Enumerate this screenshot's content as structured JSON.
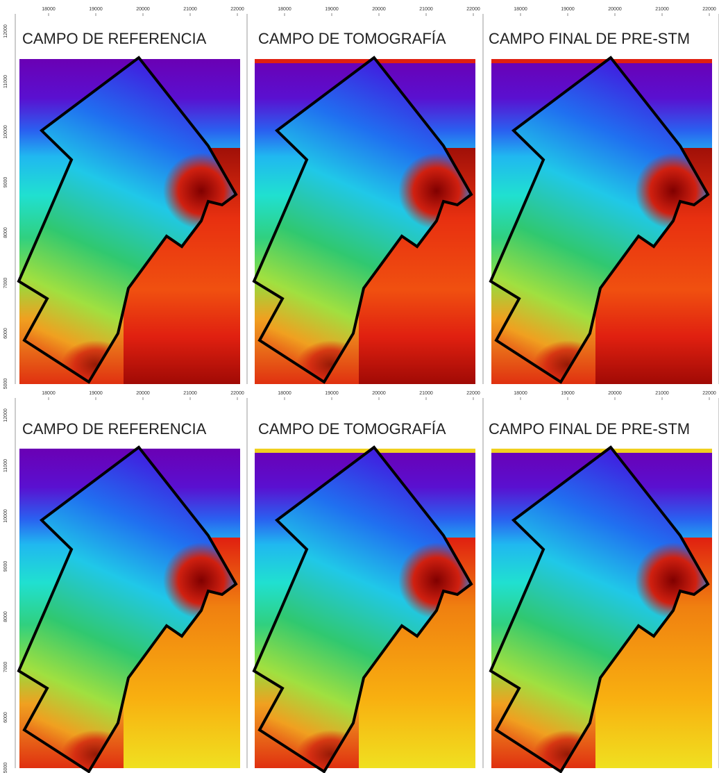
{
  "panels": [
    {
      "title": "CAMPO DE REFERENCIA",
      "x_ticks": [
        "18000",
        "19000",
        "20000",
        "21000",
        "22000"
      ],
      "y_ticks": [
        "12000",
        "11000",
        "10000",
        "9000",
        "8000",
        "7000",
        "6000",
        "5000"
      ]
    },
    {
      "title": "CAMPO DE TOMOGRAFÍA",
      "x_ticks": [
        "18000",
        "19000",
        "20000",
        "21000",
        "22000"
      ]
    },
    {
      "title": "CAMPO FINAL DE PRE-STM",
      "x_ticks": [
        "18000",
        "19000",
        "20000",
        "21000",
        "22000"
      ]
    },
    {
      "title": "CAMPO DE REFERENCIA",
      "x_ticks": [
        "18000",
        "19000",
        "20000",
        "21000",
        "22000"
      ],
      "y_ticks": [
        "12000",
        "11000",
        "10000",
        "9000",
        "8000",
        "7000",
        "6000",
        "5000"
      ]
    },
    {
      "title": "CAMPO DE TOMOGRAFÍA",
      "x_ticks": [
        "18000",
        "19000",
        "20000",
        "21000",
        "22000"
      ]
    },
    {
      "title": "CAMPO FINAL DE PRE-STM",
      "x_ticks": [
        "18000",
        "19000",
        "20000",
        "21000",
        "22000"
      ]
    }
  ]
}
